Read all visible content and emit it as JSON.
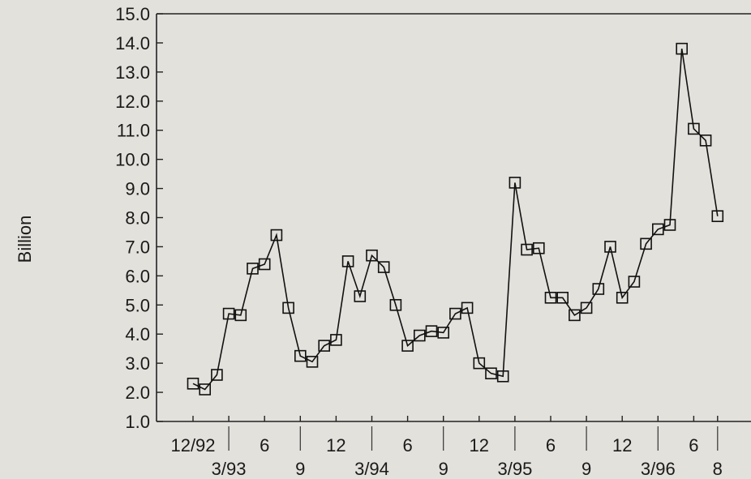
{
  "chart_data": {
    "type": "line",
    "ylabel": "Billion",
    "ylim": [
      1.0,
      15.0
    ],
    "y_ticks": [
      "1.0",
      "2.0",
      "3.0",
      "4.0",
      "5.0",
      "6.0",
      "7.0",
      "8.0",
      "9.0",
      "10.0",
      "11.0",
      "12.0",
      "13.0",
      "14.0",
      "15.0"
    ],
    "x_tick_labels": [
      {
        "label": "12/92",
        "month": 0,
        "row": 1
      },
      {
        "label": "3/93",
        "month": 3,
        "row": 2
      },
      {
        "label": "6",
        "month": 6,
        "row": 1
      },
      {
        "label": "9",
        "month": 9,
        "row": 2
      },
      {
        "label": "12",
        "month": 12,
        "row": 1
      },
      {
        "label": "3/94",
        "month": 15,
        "row": 2
      },
      {
        "label": "6",
        "month": 18,
        "row": 1
      },
      {
        "label": "9",
        "month": 21,
        "row": 2
      },
      {
        "label": "12",
        "month": 24,
        "row": 1
      },
      {
        "label": "3/95",
        "month": 27,
        "row": 2
      },
      {
        "label": "6",
        "month": 30,
        "row": 1
      },
      {
        "label": "9",
        "month": 33,
        "row": 2
      },
      {
        "label": "12",
        "month": 36,
        "row": 1
      },
      {
        "label": "3/96",
        "month": 39,
        "row": 2
      },
      {
        "label": "6",
        "month": 42,
        "row": 1
      },
      {
        "label": "8",
        "month": 44,
        "row": 2
      }
    ],
    "grid": false,
    "series": [
      {
        "marker": "square",
        "values": [
          2.3,
          2.1,
          2.6,
          4.7,
          4.65,
          6.25,
          6.4,
          7.4,
          4.9,
          3.25,
          3.05,
          3.6,
          3.8,
          6.5,
          5.3,
          6.7,
          6.3,
          5.0,
          3.6,
          3.95,
          4.1,
          4.05,
          4.7,
          4.9,
          3.0,
          2.65,
          2.55,
          9.2,
          6.9,
          6.95,
          5.25,
          5.25,
          4.65,
          4.9,
          5.55,
          7.0,
          5.25,
          5.8,
          7.1,
          7.6,
          7.75,
          13.8,
          11.05,
          10.65,
          8.05
        ]
      }
    ]
  }
}
